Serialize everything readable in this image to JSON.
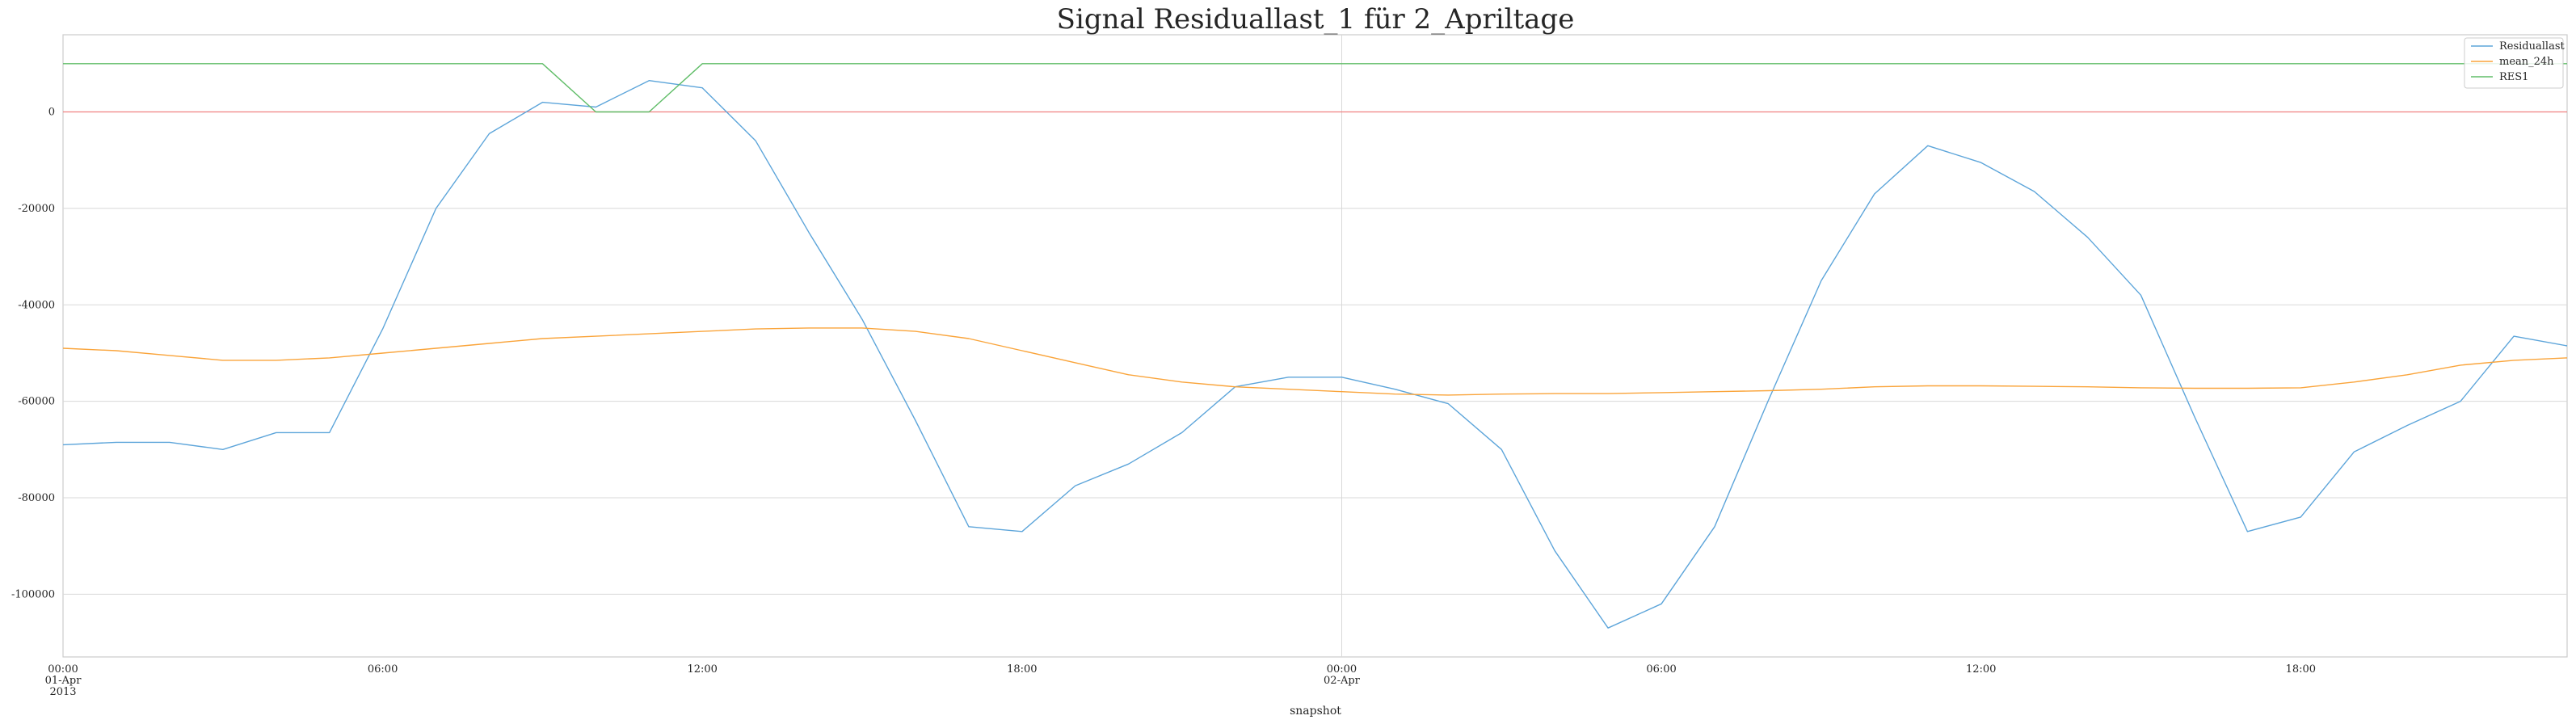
{
  "chart_data": {
    "type": "line",
    "title": "Signal Residuallast_1 für 2_Apriltage",
    "xlabel": "snapshot",
    "ylabel": "",
    "x": [
      "2013-04-01 00:00",
      "2013-04-01 01:00",
      "2013-04-01 02:00",
      "2013-04-01 03:00",
      "2013-04-01 04:00",
      "2013-04-01 05:00",
      "2013-04-01 06:00",
      "2013-04-01 07:00",
      "2013-04-01 08:00",
      "2013-04-01 09:00",
      "2013-04-01 10:00",
      "2013-04-01 11:00",
      "2013-04-01 12:00",
      "2013-04-01 13:00",
      "2013-04-01 14:00",
      "2013-04-01 15:00",
      "2013-04-01 16:00",
      "2013-04-01 17:00",
      "2013-04-01 18:00",
      "2013-04-01 19:00",
      "2013-04-01 20:00",
      "2013-04-01 21:00",
      "2013-04-01 22:00",
      "2013-04-01 23:00",
      "2013-04-02 00:00",
      "2013-04-02 01:00",
      "2013-04-02 02:00",
      "2013-04-02 03:00",
      "2013-04-02 04:00",
      "2013-04-02 05:00",
      "2013-04-02 06:00",
      "2013-04-02 07:00",
      "2013-04-02 08:00",
      "2013-04-02 09:00",
      "2013-04-02 10:00",
      "2013-04-02 11:00",
      "2013-04-02 12:00",
      "2013-04-02 13:00",
      "2013-04-02 14:00",
      "2013-04-02 15:00",
      "2013-04-02 16:00",
      "2013-04-02 17:00",
      "2013-04-02 18:00",
      "2013-04-02 19:00",
      "2013-04-02 20:00",
      "2013-04-02 21:00",
      "2013-04-02 22:00",
      "2013-04-02 23:00"
    ],
    "xlim": [
      "2013-04-01 00:00",
      "2013-04-02 23:00"
    ],
    "ylim": [
      -113000,
      16000
    ],
    "y_ticks": [
      0,
      -20000,
      -40000,
      -60000,
      -80000,
      -100000
    ],
    "x_ticks": [
      {
        "at": "2013-04-01 00:00",
        "lines": [
          "00:00",
          "01-Apr",
          "2013"
        ]
      },
      {
        "at": "2013-04-01 06:00",
        "lines": [
          "06:00"
        ]
      },
      {
        "at": "2013-04-01 12:00",
        "lines": [
          "12:00"
        ]
      },
      {
        "at": "2013-04-01 18:00",
        "lines": [
          "18:00"
        ]
      },
      {
        "at": "2013-04-02 00:00",
        "lines": [
          "00:00",
          "02-Apr"
        ]
      },
      {
        "at": "2013-04-02 06:00",
        "lines": [
          "06:00"
        ]
      },
      {
        "at": "2013-04-02 12:00",
        "lines": [
          "12:00"
        ]
      },
      {
        "at": "2013-04-02 18:00",
        "lines": [
          "18:00"
        ]
      }
    ],
    "grid": true,
    "legend_position": "top-right",
    "reference_line": {
      "y": 0,
      "color": "#f08080"
    },
    "series": [
      {
        "name": "Residuallast",
        "color": "#5DA5DA",
        "values": [
          -69000,
          -68500,
          -68500,
          -70000,
          -66500,
          -66500,
          -45000,
          -20000,
          -4500,
          2000,
          1000,
          6500,
          5000,
          -6000,
          -25000,
          -43000,
          -64000,
          -86000,
          -87000,
          -77500,
          -73000,
          -66500,
          -57000,
          -55000,
          -55000,
          -57500,
          -60500,
          -70000,
          -91000,
          -107000,
          -102000,
          -86000,
          -60000,
          -35000,
          -17000,
          -7000,
          -10500,
          -16500,
          -26000,
          -38000,
          -63000,
          -87000,
          -84000,
          -70500,
          -65000,
          -60000,
          -46500,
          -48500
        ]
      },
      {
        "name": "mean_24h",
        "color": "#FAA43A",
        "values": [
          -49000,
          -49500,
          -50500,
          -51500,
          -51500,
          -51000,
          -50000,
          -49000,
          -48000,
          -47000,
          -46500,
          -46000,
          -45500,
          -45000,
          -44800,
          -44800,
          -45500,
          -47000,
          -49500,
          -52000,
          -54500,
          -56000,
          -57000,
          -57500,
          -58000,
          -58500,
          -58700,
          -58500,
          -58400,
          -58400,
          -58200,
          -58000,
          -57800,
          -57500,
          -57000,
          -56800,
          -56800,
          -56900,
          -57000,
          -57200,
          -57300,
          -57300,
          -57200,
          -56000,
          -54500,
          -52500,
          -51500,
          -51000
        ]
      },
      {
        "name": "RES1",
        "color": "#60BD68",
        "values": [
          10000,
          10000,
          10000,
          10000,
          10000,
          10000,
          10000,
          10000,
          10000,
          10000,
          0,
          0,
          10000,
          10000,
          10000,
          10000,
          10000,
          10000,
          10000,
          10000,
          10000,
          10000,
          10000,
          10000,
          10000,
          10000,
          10000,
          10000,
          10000,
          10000,
          10000,
          10000,
          10000,
          10000,
          10000,
          10000,
          10000,
          10000,
          10000,
          10000,
          10000,
          10000,
          10000,
          10000,
          10000,
          10000,
          10000,
          10000
        ]
      }
    ]
  }
}
